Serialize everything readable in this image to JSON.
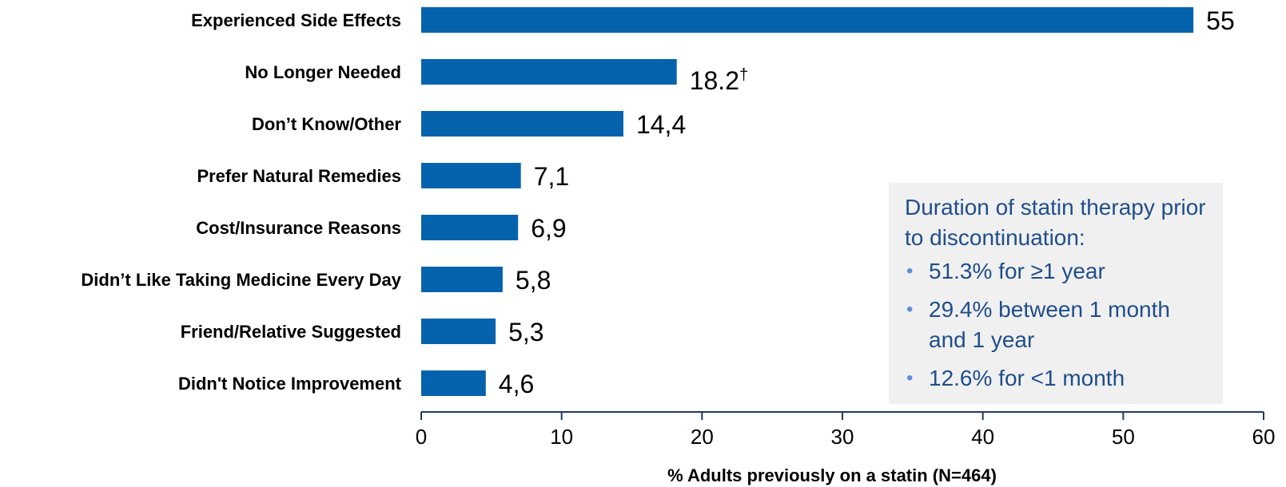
{
  "chart_data": {
    "type": "bar",
    "orientation": "horizontal",
    "categories": [
      "Experienced Side Effects",
      "No Longer Needed",
      "Don’t Know/Other",
      "Prefer Natural Remedies",
      "Cost/Insurance Reasons",
      "Didn’t Like Taking Medicine Every Day",
      "Friend/Relative Suggested",
      "Didn't Notice Improvement"
    ],
    "values": [
      55,
      18.2,
      14.4,
      7.1,
      6.9,
      5.8,
      5.3,
      4.6
    ],
    "value_labels": [
      "55",
      "18.2",
      "14,4",
      "7,1",
      "6,9",
      "5,8",
      "5,3",
      "4,6"
    ],
    "value_label_marks": [
      "",
      "†",
      "",
      "",
      "",
      "",
      "",
      ""
    ],
    "xlabel": "% Adults previously on a statin (N=464)",
    "xlim": [
      0,
      60
    ],
    "xticks": [
      0,
      10,
      20,
      30,
      40,
      50,
      60
    ],
    "grid": false,
    "bar_color": "#0563ad",
    "axis_color": "#1f3a5f"
  },
  "note": {
    "title": "Duration of statin therapy prior to discontinuation:",
    "items": [
      "51.3% for ≥1 year",
      "29.4% between 1 month and 1 year",
      "12.6% for <1 month"
    ],
    "bullet": "•",
    "text_color": "#1f4e8c",
    "bullet_color": "#5b8ed6",
    "background": "#f0f0f0"
  }
}
